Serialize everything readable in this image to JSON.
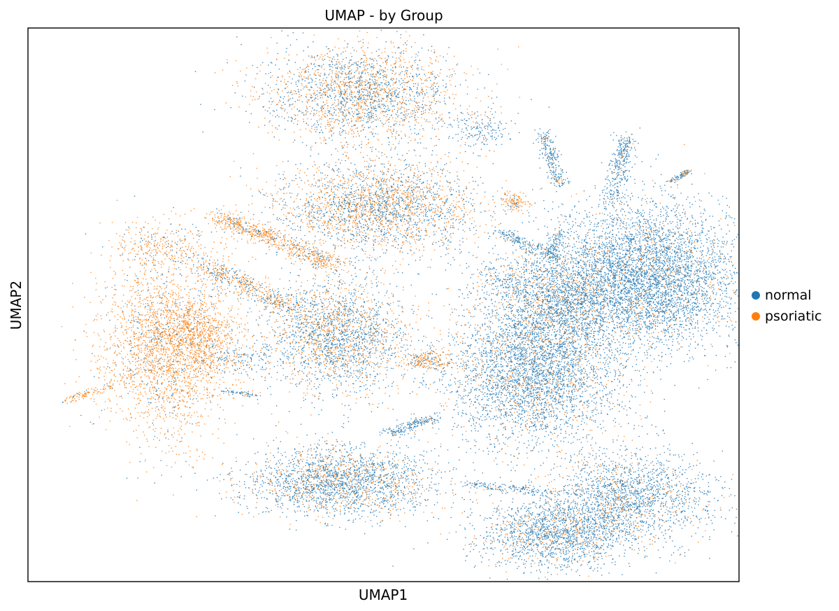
{
  "chart_data": {
    "type": "scatter",
    "title": "UMAP - by Group",
    "xlabel": "UMAP1",
    "ylabel": "UMAP2",
    "xlim": [
      0,
      100
    ],
    "ylim": [
      0,
      100
    ],
    "ticks": "none",
    "grid": false,
    "legend_position": "right",
    "series": [
      {
        "name": "normal",
        "color": "#1f77b4"
      },
      {
        "name": "psoriatic",
        "color": "#ff7f0e"
      }
    ],
    "clusters": [
      {
        "cx": 19.0,
        "cy": 60.9,
        "sx": 3.5,
        "sy": 2.3,
        "n": 300,
        "normal_frac": 0.25
      },
      {
        "cx": 19.5,
        "cy": 42.4,
        "sx": 4.6,
        "sy": 7.8,
        "n": 2600,
        "normal_frac": 0.12
      },
      {
        "cx": 24.3,
        "cy": 44.0,
        "sx": 2.6,
        "sy": 3.2,
        "n": 500,
        "normal_frac": 0.08
      },
      {
        "cx": 30.6,
        "cy": 40.1,
        "sx": 2.4,
        "sy": 1.3,
        "n": 120,
        "normal_frac": 0.9
      },
      {
        "cx": 47.2,
        "cy": 88.1,
        "sx": 6.9,
        "sy": 4.4,
        "n": 2300,
        "normal_frac": 0.5
      },
      {
        "cx": 63.8,
        "cy": 81.5,
        "sx": 2.0,
        "sy": 1.8,
        "n": 160,
        "normal_frac": 0.95
      },
      {
        "cx": 49.1,
        "cy": 67.7,
        "sx": 7.1,
        "sy": 4.1,
        "n": 2600,
        "normal_frac": 0.5
      },
      {
        "cx": 43.4,
        "cy": 44.5,
        "sx": 5.1,
        "sy": 5.4,
        "n": 2300,
        "normal_frac": 0.62
      },
      {
        "cx": 56.1,
        "cy": 40.1,
        "sx": 2.0,
        "sy": 0.9,
        "n": 220,
        "normal_frac": 0.2
      },
      {
        "cx": 43.8,
        "cy": 18.1,
        "sx": 6.9,
        "sy": 3.1,
        "n": 2300,
        "normal_frac": 0.72
      },
      {
        "cx": 68.0,
        "cy": 55.0,
        "sx": 3.1,
        "sy": 2.3,
        "n": 260,
        "normal_frac": 0.8
      },
      {
        "cx": 68.3,
        "cy": 68.4,
        "sx": 1.0,
        "sy": 0.9,
        "n": 120,
        "normal_frac": 0.05
      },
      {
        "cx": 71.1,
        "cy": 38.3,
        "sx": 6.1,
        "sy": 6.8,
        "n": 4000,
        "normal_frac": 0.82
      },
      {
        "cx": 86.2,
        "cy": 55.0,
        "sx": 6.9,
        "sy": 6.5,
        "n": 5200,
        "normal_frac": 0.9
      },
      {
        "cx": 74.5,
        "cy": 50.4,
        "sx": 3.9,
        "sy": 3.9,
        "n": 1200,
        "normal_frac": 0.72
      },
      {
        "cx": 74.2,
        "cy": 8.6,
        "sx": 5.6,
        "sy": 3.2,
        "n": 1700,
        "normal_frac": 0.82
      },
      {
        "cx": 84.4,
        "cy": 15.1,
        "sx": 5.9,
        "sy": 4.1,
        "n": 1900,
        "normal_frac": 0.82
      }
    ],
    "strands": [
      {
        "x0": 26.5,
        "y0": 66.2,
        "x1": 43.2,
        "y1": 57.0,
        "spread": 1.2,
        "n": 700,
        "normal_frac": 0.15
      },
      {
        "x0": 24.4,
        "y0": 57.6,
        "x1": 36.9,
        "y1": 49.3,
        "spread": 1.3,
        "n": 500,
        "normal_frac": 0.35
      },
      {
        "x0": 72.4,
        "y0": 81.3,
        "x1": 74.8,
        "y1": 71.4,
        "spread": 0.6,
        "n": 260,
        "normal_frac": 0.85
      },
      {
        "x0": 84.3,
        "y0": 80.4,
        "x1": 82.1,
        "y1": 68.8,
        "spread": 0.8,
        "n": 320,
        "normal_frac": 0.95
      },
      {
        "x0": 93.0,
        "y0": 74.3,
        "x1": 90.4,
        "y1": 72.2,
        "spread": 0.3,
        "n": 90,
        "normal_frac": 0.6
      },
      {
        "x0": 66.6,
        "y0": 63.2,
        "x1": 74.7,
        "y1": 58.1,
        "spread": 0.8,
        "n": 220,
        "normal_frac": 0.95
      },
      {
        "x0": 74.7,
        "y0": 63.4,
        "x1": 73.6,
        "y1": 58.6,
        "spread": 0.5,
        "n": 100,
        "normal_frac": 0.95
      },
      {
        "x0": 50.9,
        "y0": 26.8,
        "x1": 57.0,
        "y1": 29.5,
        "spread": 0.8,
        "n": 200,
        "normal_frac": 0.9
      },
      {
        "x0": 61.5,
        "y0": 17.7,
        "x1": 73.3,
        "y1": 16.1,
        "spread": 0.6,
        "n": 150,
        "normal_frac": 0.9
      },
      {
        "x0": 5.1,
        "y0": 32.7,
        "x1": 11.9,
        "y1": 35.4,
        "spread": 0.5,
        "n": 90,
        "normal_frac": 0.1
      },
      {
        "x0": 27.5,
        "y0": 34.4,
        "x1": 32.4,
        "y1": 33.6,
        "spread": 0.4,
        "n": 60,
        "normal_frac": 0.9
      }
    ]
  }
}
